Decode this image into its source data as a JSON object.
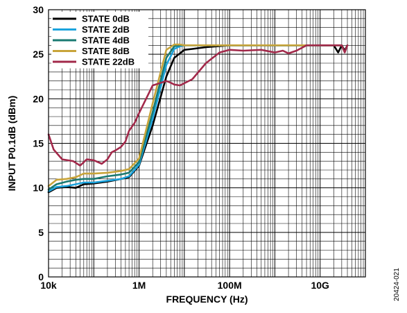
{
  "chart_data": {
    "type": "line",
    "xlabel": "FREQUENCY (Hz)",
    "ylabel": "INPUT P0.1dB (dBm)",
    "x_scale": "log",
    "xlim": [
      10000,
      100000000000
    ],
    "ylim": [
      0,
      30
    ],
    "x_ticks": [
      {
        "value": 10000,
        "label": "10k"
      },
      {
        "value": 1000000,
        "label": "1M"
      },
      {
        "value": 100000000,
        "label": "100M"
      },
      {
        "value": 10000000000,
        "label": "10G"
      }
    ],
    "y_ticks": [
      0,
      5,
      10,
      15,
      20,
      25,
      30
    ],
    "grid": true,
    "legend_position": "top-left",
    "figure_id": "20424-021",
    "series": [
      {
        "name": "STATE 0dB",
        "color": "#000000",
        "x": [
          10000,
          15000,
          25000,
          40000,
          60000,
          100000,
          200000,
          400000,
          600000,
          1000000,
          2000000,
          4000000,
          6000000,
          8000000,
          10000000,
          15000000,
          30000000,
          100000000,
          1000000000,
          10000000000,
          20000000000,
          25000000000,
          30000000000,
          35000000000,
          40000000000
        ],
        "y": [
          9.5,
          10.0,
          10.1,
          10.0,
          10.4,
          10.5,
          10.7,
          11.0,
          11.2,
          12.5,
          17.0,
          22.5,
          24.6,
          25.1,
          25.5,
          25.6,
          25.8,
          26.0,
          26.0,
          26.0,
          26.0,
          25.2,
          26.0,
          25.4,
          26.0
        ]
      },
      {
        "name": "STATE 2dB",
        "color": "#1ba3dd",
        "x": [
          10000,
          15000,
          25000,
          40000,
          60000,
          100000,
          200000,
          400000,
          600000,
          1000000,
          2000000,
          4000000,
          6000000,
          8000000,
          10000000,
          15000000,
          30000000,
          100000000,
          1000000000,
          10000000000,
          30000000000
        ],
        "y": [
          9.6,
          10.1,
          10.2,
          10.4,
          10.6,
          10.6,
          10.8,
          11.0,
          11.3,
          12.6,
          17.8,
          23.8,
          25.6,
          25.9,
          26.0,
          26.0,
          26.0,
          26.0,
          26.0,
          26.0,
          26.0
        ]
      },
      {
        "name": "STATE 4dB",
        "color": "#1a7a72",
        "x": [
          10000,
          15000,
          25000,
          40000,
          60000,
          100000,
          200000,
          400000,
          600000,
          1000000,
          2000000,
          4000000,
          6000000,
          8000000,
          10000000,
          15000000,
          30000000,
          100000000,
          1000000000,
          10000000000,
          30000000000
        ],
        "y": [
          9.8,
          10.4,
          10.7,
          10.9,
          11.0,
          11.0,
          11.3,
          11.5,
          11.7,
          12.9,
          18.5,
          24.6,
          25.9,
          26.0,
          26.0,
          26.0,
          26.0,
          26.0,
          26.0,
          26.0,
          26.0
        ]
      },
      {
        "name": "STATE 8dB",
        "color": "#c8a43a",
        "x": [
          10000,
          15000,
          25000,
          40000,
          60000,
          100000,
          200000,
          400000,
          600000,
          1000000,
          2000000,
          4000000,
          6000000,
          8000000,
          10000000,
          15000000,
          30000000,
          100000000,
          1000000000,
          10000000000,
          30000000000
        ],
        "y": [
          10.2,
          10.9,
          11.0,
          11.2,
          11.6,
          11.6,
          11.7,
          11.9,
          12.1,
          13.3,
          19.5,
          25.5,
          26.1,
          26.1,
          26.0,
          26.0,
          26.0,
          26.0,
          26.0,
          26.0,
          26.0
        ]
      },
      {
        "name": "STATE 22dB",
        "color": "#a2294a",
        "x": [
          10000,
          13000,
          20000,
          35000,
          50000,
          70000,
          100000,
          150000,
          200000,
          250000,
          300000,
          400000,
          500000,
          600000,
          800000,
          1000000,
          2000000,
          4000000,
          5000000,
          6000000,
          8000000,
          15000000,
          30000000,
          60000000,
          100000000,
          200000000,
          500000000,
          1000000000,
          1500000000,
          2000000000,
          3000000000,
          5000000000,
          10000000000,
          20000000000,
          30000000000,
          35000000000,
          40000000000
        ],
        "y": [
          16.0,
          14.3,
          13.2,
          13.0,
          12.5,
          13.2,
          13.1,
          12.7,
          13.2,
          14.0,
          14.2,
          14.6,
          15.2,
          16.4,
          17.3,
          18.4,
          21.5,
          22.0,
          21.8,
          21.6,
          21.5,
          22.2,
          24.0,
          25.2,
          25.5,
          25.4,
          25.5,
          25.2,
          25.4,
          25.1,
          25.4,
          26.0,
          26.0,
          26.0,
          26.0,
          25.2,
          26.0
        ]
      }
    ]
  }
}
